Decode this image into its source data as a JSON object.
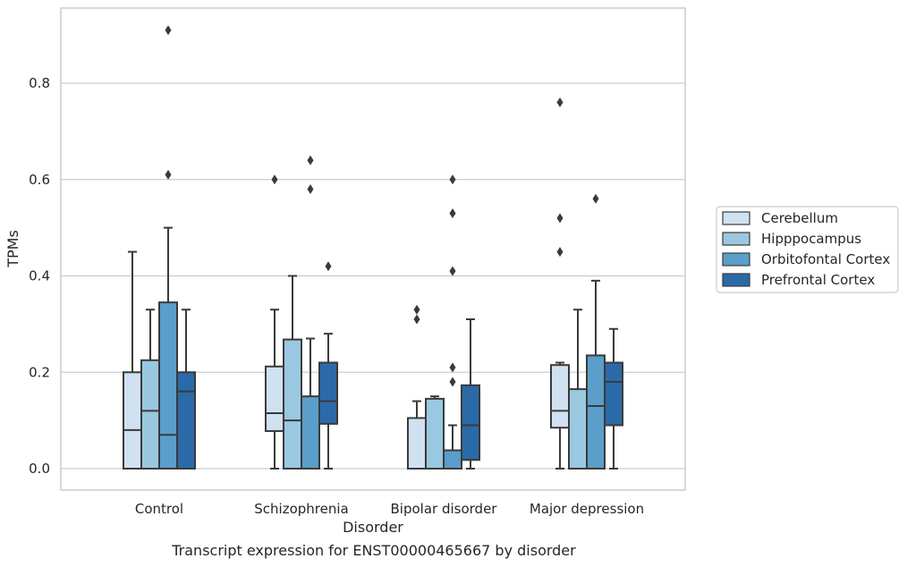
{
  "caption": "Transcript expression for ENST00000465667 by disorder",
  "chart_data": {
    "type": "box",
    "xlabel": "Disorder",
    "ylabel": "TPMs",
    "ylim": [
      -0.045,
      0.96
    ],
    "yticks": [
      0.0,
      0.2,
      0.4,
      0.6,
      0.8
    ],
    "ytick_labels": [
      "0.0",
      "0.2",
      "0.4",
      "0.6",
      "0.8"
    ],
    "grid": true,
    "legend_position": "right",
    "categories": [
      "Control",
      "Schizophrenia",
      "Bipolar disorder",
      "Major depression"
    ],
    "series": [
      {
        "name": "Cerebellum",
        "color": "#d0e1f2",
        "boxes": [
          {
            "whislo": 0.0,
            "q1": 0.0,
            "med": 0.08,
            "q3": 0.2,
            "whishi": 0.45,
            "fliers": []
          },
          {
            "whislo": 0.0,
            "q1": 0.078,
            "med": 0.115,
            "q3": 0.212,
            "whishi": 0.33,
            "fliers": [
              0.6
            ]
          },
          {
            "whislo": 0.0,
            "q1": 0.0,
            "med": 0.0,
            "q3": 0.105,
            "whishi": 0.14,
            "fliers": [
              0.31,
              0.33
            ]
          },
          {
            "whislo": 0.0,
            "q1": 0.085,
            "med": 0.12,
            "q3": 0.215,
            "whishi": 0.22,
            "fliers": [
              0.45,
              0.52,
              0.76
            ]
          }
        ]
      },
      {
        "name": "Hipppocampus",
        "color": "#9ac8e0",
        "boxes": [
          {
            "whislo": 0.0,
            "q1": 0.0,
            "med": 0.12,
            "q3": 0.225,
            "whishi": 0.33,
            "fliers": []
          },
          {
            "whislo": 0.0,
            "q1": 0.0,
            "med": 0.1,
            "q3": 0.268,
            "whishi": 0.4,
            "fliers": []
          },
          {
            "whislo": 0.0,
            "q1": 0.0,
            "med": 0.0,
            "q3": 0.145,
            "whishi": 0.15,
            "fliers": []
          },
          {
            "whislo": 0.0,
            "q1": 0.0,
            "med": 0.0,
            "q3": 0.165,
            "whishi": 0.33,
            "fliers": []
          }
        ]
      },
      {
        "name": "Orbitofontal Cortex",
        "color": "#5a9ec9",
        "boxes": [
          {
            "whislo": 0.0,
            "q1": 0.0,
            "med": 0.07,
            "q3": 0.345,
            "whishi": 0.5,
            "fliers": [
              0.61,
              0.91
            ]
          },
          {
            "whislo": 0.0,
            "q1": 0.0,
            "med": 0.0,
            "q3": 0.15,
            "whishi": 0.27,
            "fliers": [
              0.58,
              0.64
            ]
          },
          {
            "whislo": 0.0,
            "q1": 0.0,
            "med": 0.0,
            "q3": 0.038,
            "whishi": 0.09,
            "fliers": [
              0.18,
              0.21,
              0.41,
              0.53,
              0.6
            ]
          },
          {
            "whislo": 0.0,
            "q1": 0.0,
            "med": 0.13,
            "q3": 0.235,
            "whishi": 0.39,
            "fliers": [
              0.56
            ]
          }
        ]
      },
      {
        "name": "Prefrontal Cortex",
        "color": "#2b6aa8",
        "boxes": [
          {
            "whislo": 0.0,
            "q1": 0.0,
            "med": 0.16,
            "q3": 0.2,
            "whishi": 0.33,
            "fliers": []
          },
          {
            "whislo": 0.0,
            "q1": 0.093,
            "med": 0.14,
            "q3": 0.22,
            "whishi": 0.28,
            "fliers": [
              0.42
            ]
          },
          {
            "whislo": 0.0,
            "q1": 0.018,
            "med": 0.09,
            "q3": 0.173,
            "whishi": 0.31,
            "fliers": []
          },
          {
            "whislo": 0.0,
            "q1": 0.09,
            "med": 0.18,
            "q3": 0.22,
            "whishi": 0.29,
            "fliers": []
          }
        ]
      }
    ]
  }
}
